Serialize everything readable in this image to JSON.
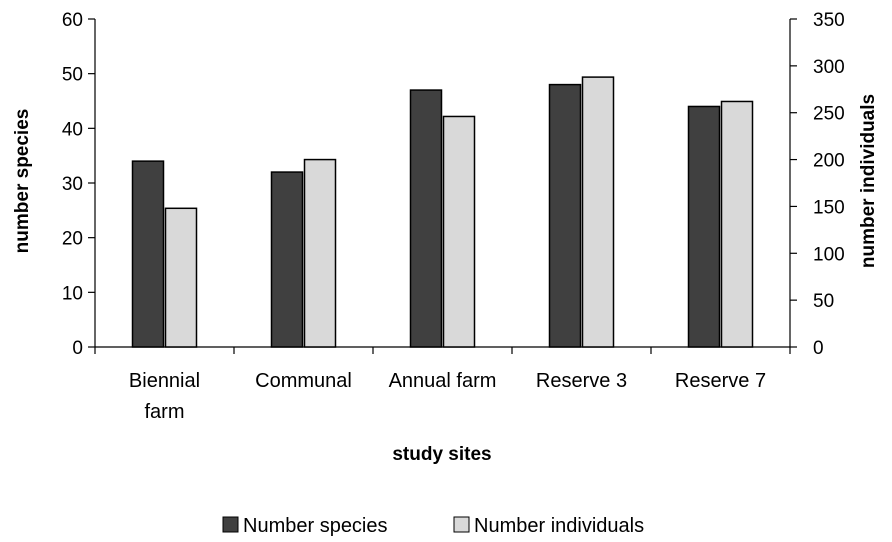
{
  "chart_data": {
    "type": "bar",
    "xlabel": "study sites",
    "ylabel_left": "number species",
    "ylabel_right": "number individuals",
    "categories": [
      [
        "Biennial",
        "farm"
      ],
      [
        "Communal"
      ],
      [
        "Annual farm"
      ],
      [
        "Reserve 3"
      ],
      [
        "Reserve 7"
      ]
    ],
    "series": [
      {
        "name": "Number species",
        "axis": "left",
        "color": "#404040",
        "values": [
          34,
          32,
          47,
          48,
          44
        ]
      },
      {
        "name": "Number individuals",
        "axis": "right",
        "color": "#d9d9d9",
        "values": [
          148,
          200,
          246,
          288,
          262
        ]
      }
    ],
    "ylim_left": [
      0,
      60
    ],
    "yticks_left": [
      0,
      10,
      20,
      30,
      40,
      50,
      60
    ],
    "ylim_right": [
      0,
      350
    ],
    "yticks_right": [
      0,
      50,
      100,
      150,
      200,
      250,
      300,
      350
    ],
    "grid": false,
    "legend_position": "bottom"
  }
}
